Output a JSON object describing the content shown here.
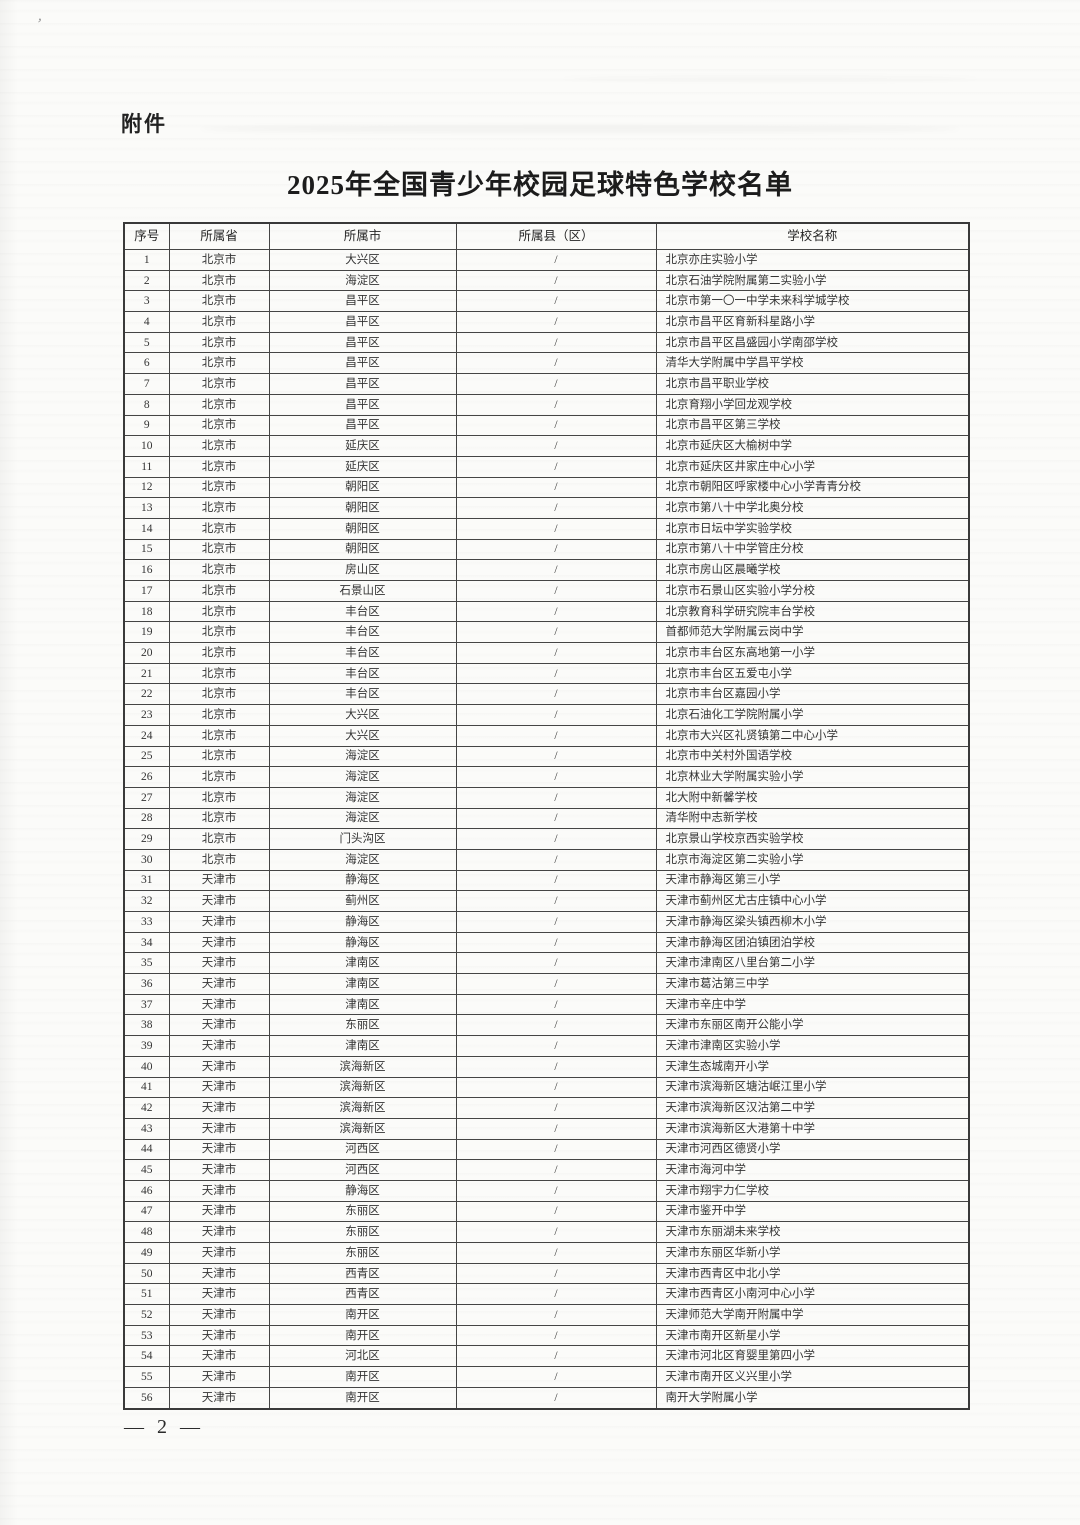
{
  "document": {
    "attachment_label": "附件",
    "title": "2025年全国青少年校园足球特色学校名单",
    "page_number": "— 2 —"
  },
  "colors": {
    "paper": "#fbfbf9",
    "ink": "#2e2e2e",
    "table_border": "#3a3a3a"
  },
  "table": {
    "headers": [
      "序号",
      "所属省",
      "所属市",
      "所属县（区）",
      "学校名称"
    ],
    "rows": [
      {
        "no": "1",
        "province": "北京市",
        "city": "大兴区",
        "county": "/",
        "school": "北京亦庄实验小学"
      },
      {
        "no": "2",
        "province": "北京市",
        "city": "海淀区",
        "county": "/",
        "school": "北京石油学院附属第二实验小学"
      },
      {
        "no": "3",
        "province": "北京市",
        "city": "昌平区",
        "county": "/",
        "school": "北京市第一〇一中学未来科学城学校"
      },
      {
        "no": "4",
        "province": "北京市",
        "city": "昌平区",
        "county": "/",
        "school": "北京市昌平区育新科星路小学"
      },
      {
        "no": "5",
        "province": "北京市",
        "city": "昌平区",
        "county": "/",
        "school": "北京市昌平区昌盛园小学南邵学校"
      },
      {
        "no": "6",
        "province": "北京市",
        "city": "昌平区",
        "county": "/",
        "school": "清华大学附属中学昌平学校"
      },
      {
        "no": "7",
        "province": "北京市",
        "city": "昌平区",
        "county": "/",
        "school": "北京市昌平职业学校"
      },
      {
        "no": "8",
        "province": "北京市",
        "city": "昌平区",
        "county": "/",
        "school": "北京育翔小学回龙观学校"
      },
      {
        "no": "9",
        "province": "北京市",
        "city": "昌平区",
        "county": "/",
        "school": "北京市昌平区第三学校"
      },
      {
        "no": "10",
        "province": "北京市",
        "city": "延庆区",
        "county": "/",
        "school": "北京市延庆区大榆树中学"
      },
      {
        "no": "11",
        "province": "北京市",
        "city": "延庆区",
        "county": "/",
        "school": "北京市延庆区井家庄中心小学"
      },
      {
        "no": "12",
        "province": "北京市",
        "city": "朝阳区",
        "county": "/",
        "school": "北京市朝阳区呼家楼中心小学青青分校"
      },
      {
        "no": "13",
        "province": "北京市",
        "city": "朝阳区",
        "county": "/",
        "school": "北京市第八十中学北奥分校"
      },
      {
        "no": "14",
        "province": "北京市",
        "city": "朝阳区",
        "county": "/",
        "school": "北京市日坛中学实验学校"
      },
      {
        "no": "15",
        "province": "北京市",
        "city": "朝阳区",
        "county": "/",
        "school": "北京市第八十中学管庄分校"
      },
      {
        "no": "16",
        "province": "北京市",
        "city": "房山区",
        "county": "/",
        "school": "北京市房山区晨曦学校"
      },
      {
        "no": "17",
        "province": "北京市",
        "city": "石景山区",
        "county": "/",
        "school": "北京市石景山区实验小学分校"
      },
      {
        "no": "18",
        "province": "北京市",
        "city": "丰台区",
        "county": "/",
        "school": "北京教育科学研究院丰台学校"
      },
      {
        "no": "19",
        "province": "北京市",
        "city": "丰台区",
        "county": "/",
        "school": "首都师范大学附属云岗中学"
      },
      {
        "no": "20",
        "province": "北京市",
        "city": "丰台区",
        "county": "/",
        "school": "北京市丰台区东高地第一小学"
      },
      {
        "no": "21",
        "province": "北京市",
        "city": "丰台区",
        "county": "/",
        "school": "北京市丰台区五爱屯小学"
      },
      {
        "no": "22",
        "province": "北京市",
        "city": "丰台区",
        "county": "/",
        "school": "北京市丰台区嘉园小学"
      },
      {
        "no": "23",
        "province": "北京市",
        "city": "大兴区",
        "county": "/",
        "school": "北京石油化工学院附属小学"
      },
      {
        "no": "24",
        "province": "北京市",
        "city": "大兴区",
        "county": "/",
        "school": "北京市大兴区礼贤镇第二中心小学"
      },
      {
        "no": "25",
        "province": "北京市",
        "city": "海淀区",
        "county": "/",
        "school": "北京市中关村外国语学校"
      },
      {
        "no": "26",
        "province": "北京市",
        "city": "海淀区",
        "county": "/",
        "school": "北京林业大学附属实验小学"
      },
      {
        "no": "27",
        "province": "北京市",
        "city": "海淀区",
        "county": "/",
        "school": "北大附中新馨学校"
      },
      {
        "no": "28",
        "province": "北京市",
        "city": "海淀区",
        "county": "/",
        "school": "清华附中志新学校"
      },
      {
        "no": "29",
        "province": "北京市",
        "city": "门头沟区",
        "county": "/",
        "school": "北京景山学校京西实验学校"
      },
      {
        "no": "30",
        "province": "北京市",
        "city": "海淀区",
        "county": "/",
        "school": "北京市海淀区第二实验小学"
      },
      {
        "no": "31",
        "province": "天津市",
        "city": "静海区",
        "county": "/",
        "school": "天津市静海区第三小学"
      },
      {
        "no": "32",
        "province": "天津市",
        "city": "蓟州区",
        "county": "/",
        "school": "天津市蓟州区尤古庄镇中心小学"
      },
      {
        "no": "33",
        "province": "天津市",
        "city": "静海区",
        "county": "/",
        "school": "天津市静海区梁头镇西柳木小学"
      },
      {
        "no": "34",
        "province": "天津市",
        "city": "静海区",
        "county": "/",
        "school": "天津市静海区团泊镇团泊学校"
      },
      {
        "no": "35",
        "province": "天津市",
        "city": "津南区",
        "county": "/",
        "school": "天津市津南区八里台第二小学"
      },
      {
        "no": "36",
        "province": "天津市",
        "city": "津南区",
        "county": "/",
        "school": "天津市葛沽第三中学"
      },
      {
        "no": "37",
        "province": "天津市",
        "city": "津南区",
        "county": "/",
        "school": "天津市辛庄中学"
      },
      {
        "no": "38",
        "province": "天津市",
        "city": "东丽区",
        "county": "/",
        "school": "天津市东丽区南开公能小学"
      },
      {
        "no": "39",
        "province": "天津市",
        "city": "津南区",
        "county": "/",
        "school": "天津市津南区实验小学"
      },
      {
        "no": "40",
        "province": "天津市",
        "city": "滨海新区",
        "county": "/",
        "school": "天津生态城南开小学"
      },
      {
        "no": "41",
        "province": "天津市",
        "city": "滨海新区",
        "county": "/",
        "school": "天津市滨海新区塘沽岷江里小学"
      },
      {
        "no": "42",
        "province": "天津市",
        "city": "滨海新区",
        "county": "/",
        "school": "天津市滨海新区汉沽第二中学"
      },
      {
        "no": "43",
        "province": "天津市",
        "city": "滨海新区",
        "county": "/",
        "school": "天津市滨海新区大港第十中学"
      },
      {
        "no": "44",
        "province": "天津市",
        "city": "河西区",
        "county": "/",
        "school": "天津市河西区德贤小学"
      },
      {
        "no": "45",
        "province": "天津市",
        "city": "河西区",
        "county": "/",
        "school": "天津市海河中学"
      },
      {
        "no": "46",
        "province": "天津市",
        "city": "静海区",
        "county": "/",
        "school": "天津市翔宇力仁学校"
      },
      {
        "no": "47",
        "province": "天津市",
        "city": "东丽区",
        "county": "/",
        "school": "天津市鉴开中学"
      },
      {
        "no": "48",
        "province": "天津市",
        "city": "东丽区",
        "county": "/",
        "school": "天津市东丽湖未来学校"
      },
      {
        "no": "49",
        "province": "天津市",
        "city": "东丽区",
        "county": "/",
        "school": "天津市东丽区华新小学"
      },
      {
        "no": "50",
        "province": "天津市",
        "city": "西青区",
        "county": "/",
        "school": "天津市西青区中北小学"
      },
      {
        "no": "51",
        "province": "天津市",
        "city": "西青区",
        "county": "/",
        "school": "天津市西青区小南河中心小学"
      },
      {
        "no": "52",
        "province": "天津市",
        "city": "南开区",
        "county": "/",
        "school": "天津师范大学南开附属中学"
      },
      {
        "no": "53",
        "province": "天津市",
        "city": "南开区",
        "county": "/",
        "school": "天津市南开区新星小学"
      },
      {
        "no": "54",
        "province": "天津市",
        "city": "河北区",
        "county": "/",
        "school": "天津市河北区育婴里第四小学"
      },
      {
        "no": "55",
        "province": "天津市",
        "city": "南开区",
        "county": "/",
        "school": "天津市南开区义兴里小学"
      },
      {
        "no": "56",
        "province": "天津市",
        "city": "南开区",
        "county": "/",
        "school": "南开大学附属小学"
      }
    ]
  }
}
